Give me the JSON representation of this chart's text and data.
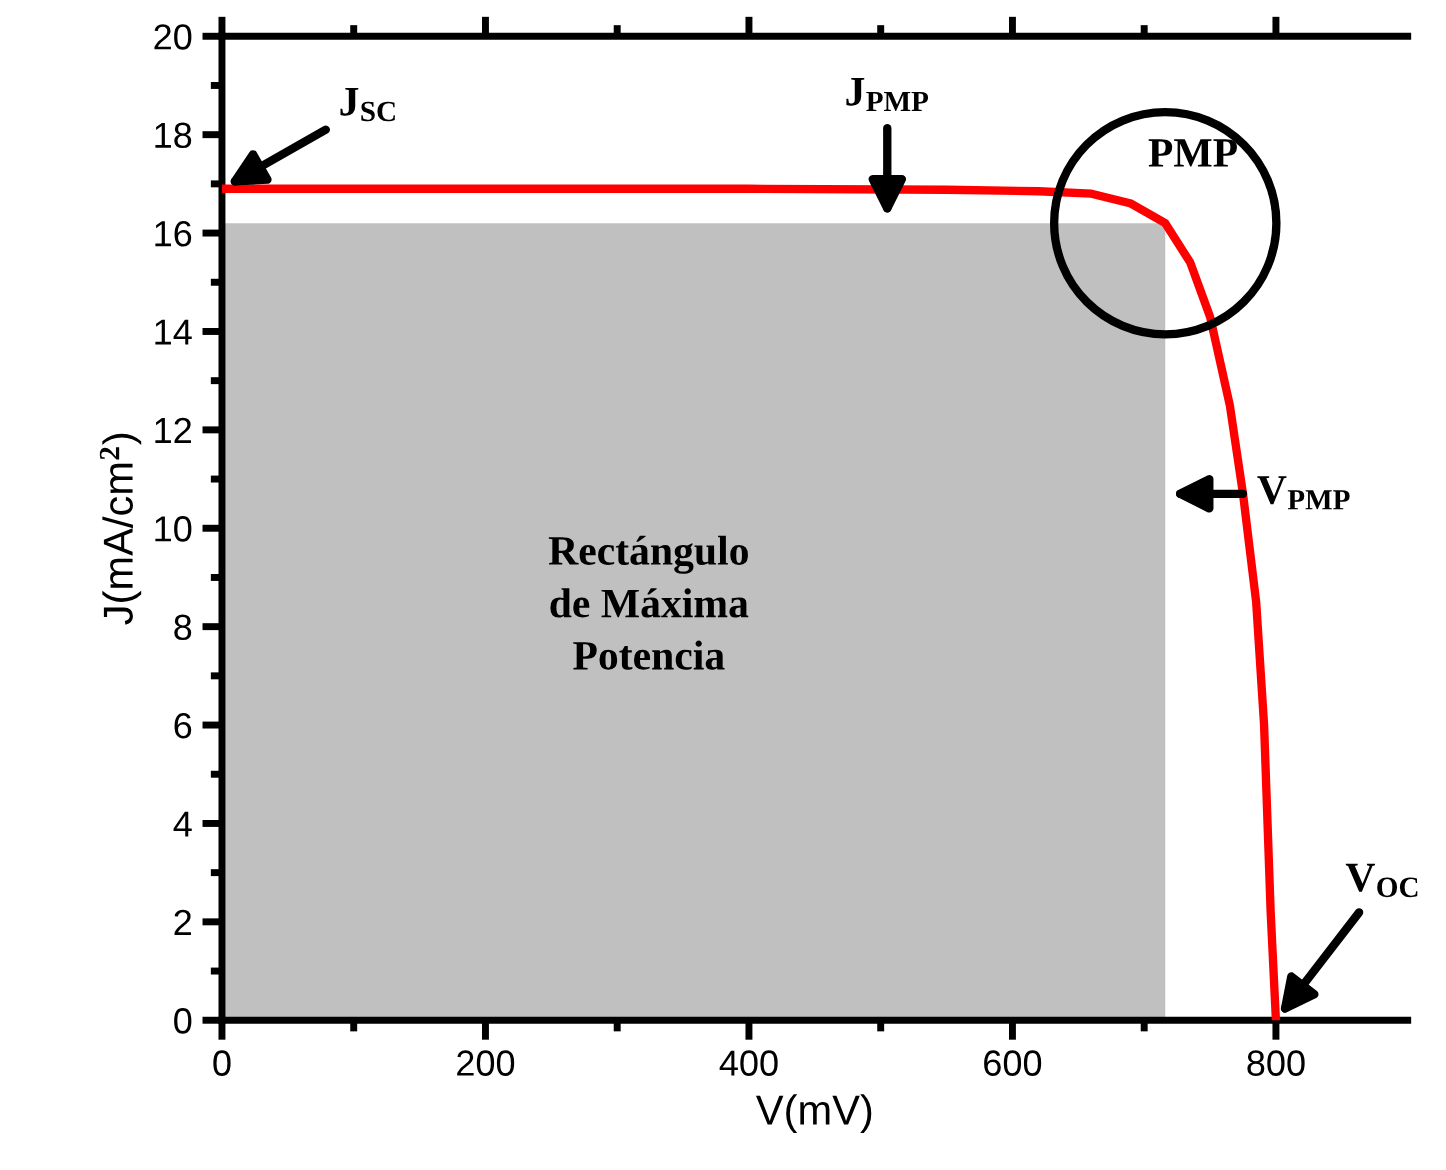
{
  "chart_data": {
    "type": "line",
    "xlabel": "V(mV)",
    "ylabel": "J(mA/cm$^{2}$)",
    "xlim": [
      0,
      900
    ],
    "ylim": [
      0,
      20
    ],
    "xticks": [
      0,
      {
        "value": 100,
        "label": null
      },
      200,
      {
        "value": 300,
        "label": null
      },
      400,
      {
        "value": 500,
        "label": null
      },
      600,
      {
        "value": 700,
        "label": null
      },
      800
    ],
    "yticks": [
      0,
      {
        "value": 1,
        "label": null
      },
      2,
      {
        "value": 3,
        "label": null
      },
      4,
      {
        "value": 5,
        "label": null
      },
      6,
      {
        "value": 7,
        "label": null
      },
      8,
      {
        "value": 9,
        "label": null
      },
      10,
      {
        "value": 11,
        "label": null
      },
      12,
      {
        "value": 13,
        "label": null
      },
      14,
      {
        "value": 15,
        "label": null
      },
      16,
      {
        "value": 17,
        "label": null
      },
      18,
      {
        "value": 19,
        "label": null
      },
      20
    ],
    "marker": "none",
    "line_style": "solid",
    "series": [
      {
        "type": "area",
        "color": "#c0c0c0",
        "x": [
          0,
          716
        ],
        "values": [
          16.2,
          16.2
        ]
      },
      {
        "color": "#ff0000",
        "x": [
          0,
          200,
          400,
          550,
          620,
          660,
          690,
          716,
          735,
          750,
          765,
          775,
          785,
          791,
          796,
          800
        ],
        "values": [
          16.9,
          16.9,
          16.9,
          16.88,
          16.85,
          16.8,
          16.6,
          16.2,
          15.4,
          14.3,
          12.5,
          10.7,
          8.5,
          6,
          2.2,
          0
        ]
      }
    ],
    "annotations": [
      {
        "text": "J$_{SC}$",
        "x": 0,
        "y": 16.9
      },
      {
        "text": "J$_{PMP}$",
        "x": 505,
        "y": 16.2
      },
      {
        "text": "PMP",
        "x": 716,
        "y": 16.2
      },
      {
        "text": "V$_{PMP}$",
        "x": 716,
        "y": 10.7
      },
      {
        "text": "V$_{OC}$",
        "x": 800,
        "y": 0
      },
      "Rectángulo\nde Máxima\nPotencia"
    ]
  }
}
